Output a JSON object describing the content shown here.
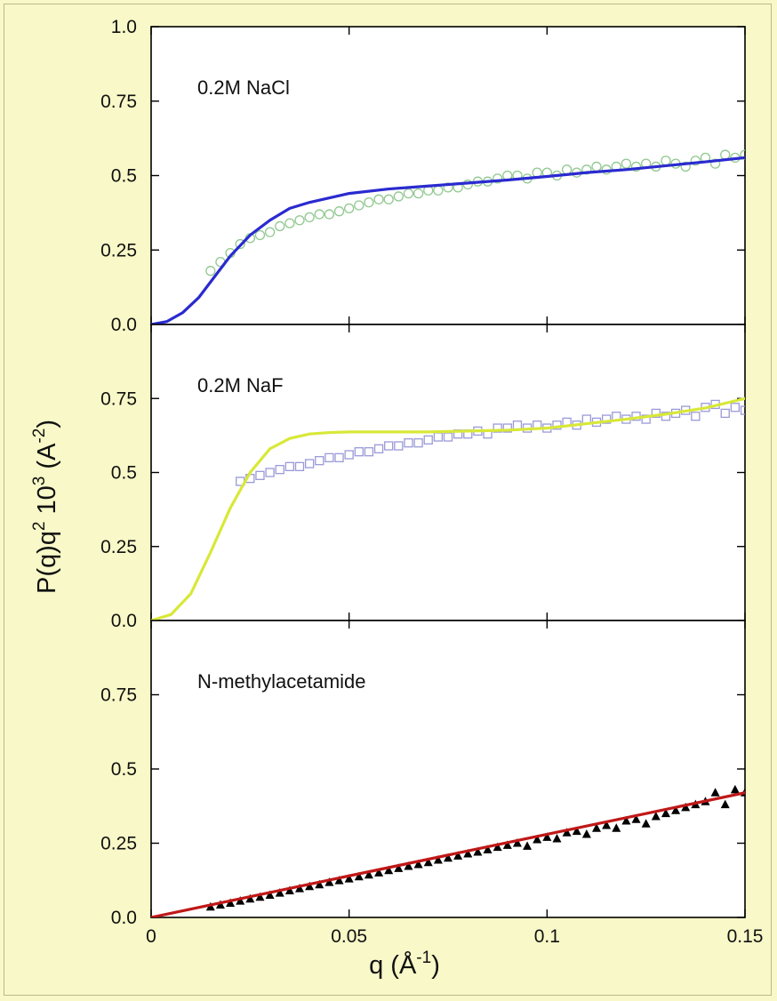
{
  "x_axis": {
    "label_main": "q (Å",
    "label_sup": "-1",
    "label_close": ")"
  },
  "y_axis": {
    "label_a": "P(q)q",
    "label_a_sup": "2",
    "label_b": "  10",
    "label_b_sup": "3",
    "label_c": " (A",
    "label_c_sup": "-2",
    "label_d": ")"
  },
  "chart_data": {
    "type": "line",
    "xlabel": "q (Å-1)",
    "ylabel": "P(q)q2 10^3 (A-2)",
    "xlim": [
      0,
      0.15
    ],
    "xticks": [
      0,
      0.05,
      0.1,
      0.15
    ],
    "xtick_labels": [
      "0",
      "0.05",
      "0.1",
      "0.15"
    ],
    "grid": false,
    "panels": [
      {
        "label": "0.2M NaCl",
        "ylim": [
          0,
          1.0
        ],
        "yticks": [
          0,
          0.25,
          0.5,
          0.75,
          1.0
        ],
        "ytick_labels": [
          "0.0",
          "0.25",
          "0.5",
          "0.75",
          "1.0"
        ],
        "line": {
          "color": "#2a2ad0",
          "x": [
            0,
            0.004,
            0.008,
            0.012,
            0.016,
            0.02,
            0.025,
            0.03,
            0.035,
            0.04,
            0.05,
            0.06,
            0.07,
            0.08,
            0.09,
            0.1,
            0.11,
            0.12,
            0.13,
            0.14,
            0.15
          ],
          "y": [
            0,
            0.01,
            0.04,
            0.09,
            0.16,
            0.23,
            0.3,
            0.35,
            0.39,
            0.41,
            0.44,
            0.455,
            0.465,
            0.475,
            0.485,
            0.497,
            0.51,
            0.52,
            0.533,
            0.546,
            0.56
          ]
        },
        "markers": {
          "shape": "circle",
          "color": "#90c890",
          "x": [
            0.015,
            0.0175,
            0.02,
            0.0225,
            0.025,
            0.0275,
            0.03,
            0.0325,
            0.035,
            0.0375,
            0.04,
            0.0425,
            0.045,
            0.0475,
            0.05,
            0.0525,
            0.055,
            0.0575,
            0.06,
            0.0625,
            0.065,
            0.0675,
            0.07,
            0.0725,
            0.075,
            0.0775,
            0.08,
            0.0825,
            0.085,
            0.0875,
            0.09,
            0.0925,
            0.095,
            0.0975,
            0.1,
            0.1025,
            0.105,
            0.1075,
            0.11,
            0.1125,
            0.115,
            0.1175,
            0.12,
            0.1225,
            0.125,
            0.1275,
            0.13,
            0.1325,
            0.135,
            0.1375,
            0.14,
            0.1425,
            0.145,
            0.1475,
            0.15
          ],
          "y": [
            0.18,
            0.21,
            0.24,
            0.27,
            0.29,
            0.3,
            0.31,
            0.33,
            0.34,
            0.35,
            0.36,
            0.37,
            0.37,
            0.38,
            0.39,
            0.4,
            0.41,
            0.42,
            0.42,
            0.43,
            0.44,
            0.44,
            0.45,
            0.45,
            0.46,
            0.46,
            0.47,
            0.48,
            0.48,
            0.49,
            0.5,
            0.5,
            0.49,
            0.51,
            0.51,
            0.5,
            0.52,
            0.51,
            0.52,
            0.53,
            0.52,
            0.53,
            0.54,
            0.53,
            0.54,
            0.53,
            0.55,
            0.54,
            0.53,
            0.55,
            0.56,
            0.54,
            0.57,
            0.56,
            0.57
          ]
        }
      },
      {
        "label": "0.2M NaF",
        "ylim": [
          0,
          1.0
        ],
        "yticks": [
          0,
          0.25,
          0.5,
          0.75
        ],
        "ytick_labels": [
          "0.0",
          "0.25",
          "0.5",
          "0.75"
        ],
        "line": {
          "color": "#d8e838",
          "x": [
            0,
            0.005,
            0.01,
            0.015,
            0.02,
            0.025,
            0.03,
            0.035,
            0.04,
            0.045,
            0.05,
            0.06,
            0.07,
            0.08,
            0.09,
            0.1,
            0.11,
            0.12,
            0.13,
            0.14,
            0.15
          ],
          "y": [
            0,
            0.02,
            0.09,
            0.23,
            0.38,
            0.5,
            0.58,
            0.615,
            0.63,
            0.635,
            0.637,
            0.637,
            0.637,
            0.64,
            0.643,
            0.65,
            0.665,
            0.68,
            0.697,
            0.718,
            0.75
          ]
        },
        "markers": {
          "shape": "square",
          "color": "#9a9ad8",
          "x": [
            0.0225,
            0.025,
            0.0275,
            0.03,
            0.0325,
            0.035,
            0.0375,
            0.04,
            0.0425,
            0.045,
            0.0475,
            0.05,
            0.0525,
            0.055,
            0.0575,
            0.06,
            0.0625,
            0.065,
            0.0675,
            0.07,
            0.0725,
            0.075,
            0.0775,
            0.08,
            0.0825,
            0.085,
            0.0875,
            0.09,
            0.0925,
            0.095,
            0.0975,
            0.1,
            0.1025,
            0.105,
            0.1075,
            0.11,
            0.1125,
            0.115,
            0.1175,
            0.12,
            0.1225,
            0.125,
            0.1275,
            0.13,
            0.1325,
            0.135,
            0.1375,
            0.14,
            0.1425,
            0.145,
            0.1475,
            0.15
          ],
          "y": [
            0.47,
            0.48,
            0.49,
            0.5,
            0.51,
            0.52,
            0.52,
            0.53,
            0.54,
            0.55,
            0.55,
            0.56,
            0.57,
            0.57,
            0.58,
            0.59,
            0.59,
            0.6,
            0.6,
            0.61,
            0.62,
            0.62,
            0.63,
            0.63,
            0.64,
            0.63,
            0.65,
            0.65,
            0.66,
            0.65,
            0.66,
            0.65,
            0.66,
            0.67,
            0.66,
            0.68,
            0.67,
            0.68,
            0.69,
            0.68,
            0.69,
            0.68,
            0.7,
            0.69,
            0.7,
            0.71,
            0.69,
            0.72,
            0.73,
            0.7,
            0.72,
            0.71
          ]
        }
      },
      {
        "label": "N-methylacetamide",
        "ylim": [
          0,
          1.0
        ],
        "yticks": [
          0,
          0.25,
          0.5,
          0.75
        ],
        "ytick_labels": [
          "0.0",
          "0.25",
          "0.5",
          "0.75"
        ],
        "line": {
          "color": "#c01818",
          "x": [
            0,
            0.15
          ],
          "y": [
            0,
            0.42
          ]
        },
        "markers": {
          "shape": "triangle",
          "color": "#000000",
          "x": [
            0.015,
            0.0175,
            0.02,
            0.0225,
            0.025,
            0.0275,
            0.03,
            0.0325,
            0.035,
            0.0375,
            0.04,
            0.0425,
            0.045,
            0.0475,
            0.05,
            0.0525,
            0.055,
            0.0575,
            0.06,
            0.0625,
            0.065,
            0.0675,
            0.07,
            0.0725,
            0.075,
            0.0775,
            0.08,
            0.0825,
            0.085,
            0.0875,
            0.09,
            0.0925,
            0.095,
            0.0975,
            0.1,
            0.1025,
            0.105,
            0.1075,
            0.11,
            0.1125,
            0.115,
            0.1175,
            0.12,
            0.1225,
            0.125,
            0.1275,
            0.13,
            0.1325,
            0.135,
            0.1375,
            0.14,
            0.1425,
            0.145,
            0.1475,
            0.15
          ],
          "y": [
            0.035,
            0.042,
            0.048,
            0.055,
            0.062,
            0.068,
            0.075,
            0.082,
            0.09,
            0.097,
            0.104,
            0.11,
            0.118,
            0.124,
            0.13,
            0.137,
            0.143,
            0.15,
            0.158,
            0.165,
            0.172,
            0.178,
            0.185,
            0.193,
            0.2,
            0.207,
            0.214,
            0.22,
            0.228,
            0.236,
            0.243,
            0.25,
            0.24,
            0.262,
            0.27,
            0.265,
            0.285,
            0.29,
            0.28,
            0.3,
            0.31,
            0.3,
            0.325,
            0.33,
            0.315,
            0.34,
            0.35,
            0.36,
            0.37,
            0.38,
            0.39,
            0.42,
            0.38,
            0.43,
            0.42
          ]
        }
      }
    ]
  }
}
